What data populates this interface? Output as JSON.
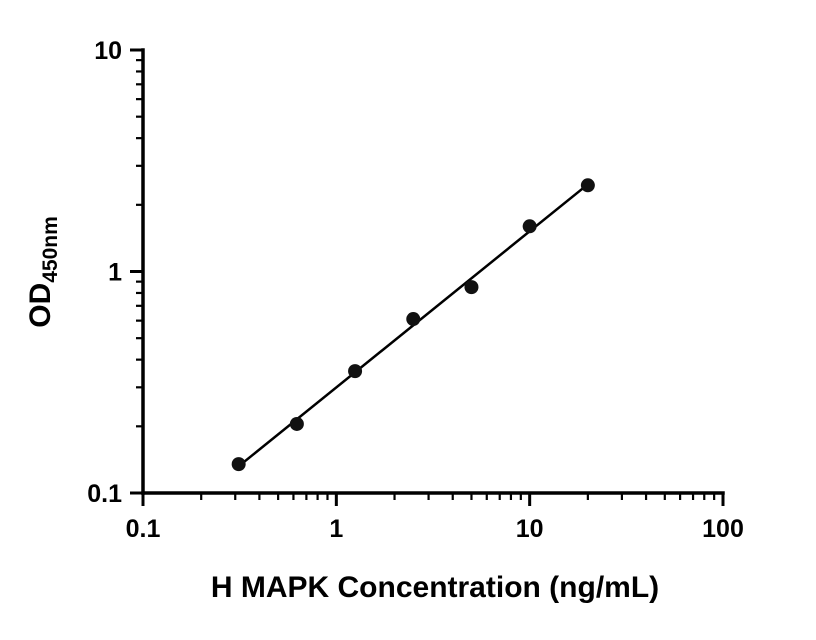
{
  "chart_data": {
    "type": "scatter",
    "title": "",
    "xlabel": "H MAPK Concentration (ng/mL)",
    "ylabel_main": "OD",
    "ylabel_sub": "450nm",
    "x_scale": "log",
    "y_scale": "log",
    "xlim": [
      0.1,
      100
    ],
    "ylim": [
      0.1,
      10
    ],
    "x_ticks": [
      0.1,
      1,
      10,
      100
    ],
    "x_tick_labels": [
      "0.1",
      "1",
      "10",
      "100"
    ],
    "y_ticks": [
      0.1,
      1,
      10
    ],
    "y_tick_labels": [
      "0.1",
      "1",
      "10"
    ],
    "grid": false,
    "legend": "none",
    "fit": "log-log-linear",
    "series": [
      {
        "name": "standard-curve",
        "x": [
          0.3125,
          0.625,
          1.25,
          2.5,
          5,
          10,
          20
        ],
        "y": [
          0.135,
          0.205,
          0.355,
          0.61,
          0.85,
          1.6,
          2.45
        ]
      }
    ],
    "axis_color": "#000000",
    "point_color": "#111111",
    "line_color": "#000000",
    "text_color": "#000000",
    "background_color": "#ffffff"
  }
}
